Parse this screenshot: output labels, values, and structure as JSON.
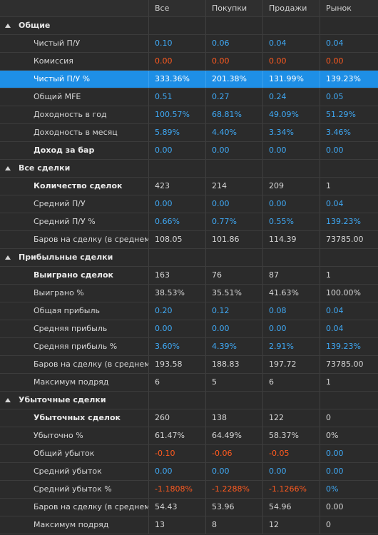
{
  "columns": [
    "Все",
    "Покупки",
    "Продажи",
    "Рынок"
  ],
  "colors": {
    "blue": "#3fa9f5",
    "red": "#ff5a1f",
    "selected": "#1e8fe6"
  },
  "rows": [
    {
      "type": "section",
      "label": "Общие"
    },
    {
      "type": "row",
      "label": "Чистый П/У",
      "bold": false,
      "values": [
        "0.10",
        "0.06",
        "0.04",
        "0.04"
      ],
      "colors": [
        "blue",
        "blue",
        "blue",
        "blue"
      ]
    },
    {
      "type": "row",
      "label": "Комиссия",
      "bold": false,
      "values": [
        "0.00",
        "0.00",
        "0.00",
        "0.00"
      ],
      "colors": [
        "red",
        "red",
        "red",
        "red"
      ]
    },
    {
      "type": "row",
      "label": "Чистый П/У %",
      "bold": false,
      "selected": true,
      "values": [
        "333.36%",
        "201.38%",
        "131.99%",
        "139.23%"
      ],
      "colors": [
        "white",
        "white",
        "white",
        "white"
      ]
    },
    {
      "type": "row",
      "label": "Общий MFE",
      "bold": false,
      "values": [
        "0.51",
        "0.27",
        "0.24",
        "0.05"
      ],
      "colors": [
        "blue",
        "blue",
        "blue",
        "blue"
      ]
    },
    {
      "type": "row",
      "label": "Доходность в год",
      "bold": false,
      "values": [
        "100.57%",
        "68.81%",
        "49.09%",
        "51.29%"
      ],
      "colors": [
        "blue",
        "blue",
        "blue",
        "blue"
      ]
    },
    {
      "type": "row",
      "label": "Доходность в месяц",
      "bold": false,
      "values": [
        "5.89%",
        "4.40%",
        "3.34%",
        "3.46%"
      ],
      "colors": [
        "blue",
        "blue",
        "blue",
        "blue"
      ]
    },
    {
      "type": "row",
      "label": "Доход за бар",
      "bold": true,
      "values": [
        "0.00",
        "0.00",
        "0.00",
        "0.00"
      ],
      "colors": [
        "blue",
        "blue",
        "blue",
        "blue"
      ]
    },
    {
      "type": "section",
      "label": "Все сделки"
    },
    {
      "type": "row",
      "label": "Количество сделок",
      "bold": true,
      "values": [
        "423",
        "214",
        "209",
        "1"
      ],
      "colors": [
        "white",
        "white",
        "white",
        "white"
      ]
    },
    {
      "type": "row",
      "label": "Средний П/У",
      "bold": false,
      "values": [
        "0.00",
        "0.00",
        "0.00",
        "0.04"
      ],
      "colors": [
        "blue",
        "blue",
        "blue",
        "blue"
      ]
    },
    {
      "type": "row",
      "label": "Средний П/У %",
      "bold": false,
      "values": [
        "0.66%",
        "0.77%",
        "0.55%",
        "139.23%"
      ],
      "colors": [
        "blue",
        "blue",
        "blue",
        "blue"
      ]
    },
    {
      "type": "row",
      "label": "Баров на сделку (в среднем)",
      "bold": false,
      "values": [
        "108.05",
        "101.86",
        "114.39",
        "73785.00"
      ],
      "colors": [
        "white",
        "white",
        "white",
        "white"
      ]
    },
    {
      "type": "section",
      "label": "Прибыльные сделки"
    },
    {
      "type": "row",
      "label": "Выиграно сделок",
      "bold": true,
      "values": [
        "163",
        "76",
        "87",
        "1"
      ],
      "colors": [
        "white",
        "white",
        "white",
        "white"
      ]
    },
    {
      "type": "row",
      "label": "Выиграно %",
      "bold": false,
      "values": [
        "38.53%",
        "35.51%",
        "41.63%",
        "100.00%"
      ],
      "colors": [
        "white",
        "white",
        "white",
        "white"
      ]
    },
    {
      "type": "row",
      "label": "Общая прибыль",
      "bold": false,
      "values": [
        "0.20",
        "0.12",
        "0.08",
        "0.04"
      ],
      "colors": [
        "blue",
        "blue",
        "blue",
        "blue"
      ]
    },
    {
      "type": "row",
      "label": "Средняя прибыль",
      "bold": false,
      "values": [
        "0.00",
        "0.00",
        "0.00",
        "0.04"
      ],
      "colors": [
        "blue",
        "blue",
        "blue",
        "blue"
      ]
    },
    {
      "type": "row",
      "label": "Средняя прибыль %",
      "bold": false,
      "values": [
        "3.60%",
        "4.39%",
        "2.91%",
        "139.23%"
      ],
      "colors": [
        "blue",
        "blue",
        "blue",
        "blue"
      ]
    },
    {
      "type": "row",
      "label": "Баров на сделку (в среднем)",
      "bold": false,
      "values": [
        "193.58",
        "188.83",
        "197.72",
        "73785.00"
      ],
      "colors": [
        "white",
        "white",
        "white",
        "white"
      ]
    },
    {
      "type": "row",
      "label": "Максимум подряд",
      "bold": false,
      "values": [
        "6",
        "5",
        "6",
        "1"
      ],
      "colors": [
        "white",
        "white",
        "white",
        "white"
      ]
    },
    {
      "type": "section",
      "label": "Убыточные сделки"
    },
    {
      "type": "row",
      "label": "Убыточных сделок",
      "bold": true,
      "values": [
        "260",
        "138",
        "122",
        "0"
      ],
      "colors": [
        "white",
        "white",
        "white",
        "white"
      ]
    },
    {
      "type": "row",
      "label": "Убыточно %",
      "bold": false,
      "values": [
        "61.47%",
        "64.49%",
        "58.37%",
        "0%"
      ],
      "colors": [
        "white",
        "white",
        "white",
        "white"
      ]
    },
    {
      "type": "row",
      "label": "Общий убыток",
      "bold": false,
      "values": [
        "-0.10",
        "-0.06",
        "-0.05",
        "0.00"
      ],
      "colors": [
        "red",
        "red",
        "red",
        "blue"
      ]
    },
    {
      "type": "row",
      "label": "Средний убыток",
      "bold": false,
      "values": [
        "0.00",
        "0.00",
        "0.00",
        "0.00"
      ],
      "colors": [
        "blue",
        "blue",
        "blue",
        "blue"
      ]
    },
    {
      "type": "row",
      "label": "Средний убыток %",
      "bold": false,
      "values": [
        "-1.1808%",
        "-1.2288%",
        "-1.1266%",
        "0%"
      ],
      "colors": [
        "red",
        "red",
        "red",
        "blue"
      ]
    },
    {
      "type": "row",
      "label": "Баров на сделку (в среднем)",
      "bold": false,
      "values": [
        "54.43",
        "53.96",
        "54.96",
        "0.00"
      ],
      "colors": [
        "white",
        "white",
        "white",
        "white"
      ]
    },
    {
      "type": "row",
      "label": "Максимум подряд",
      "bold": false,
      "values": [
        "13",
        "8",
        "12",
        "0"
      ],
      "colors": [
        "white",
        "white",
        "white",
        "white"
      ]
    }
  ]
}
